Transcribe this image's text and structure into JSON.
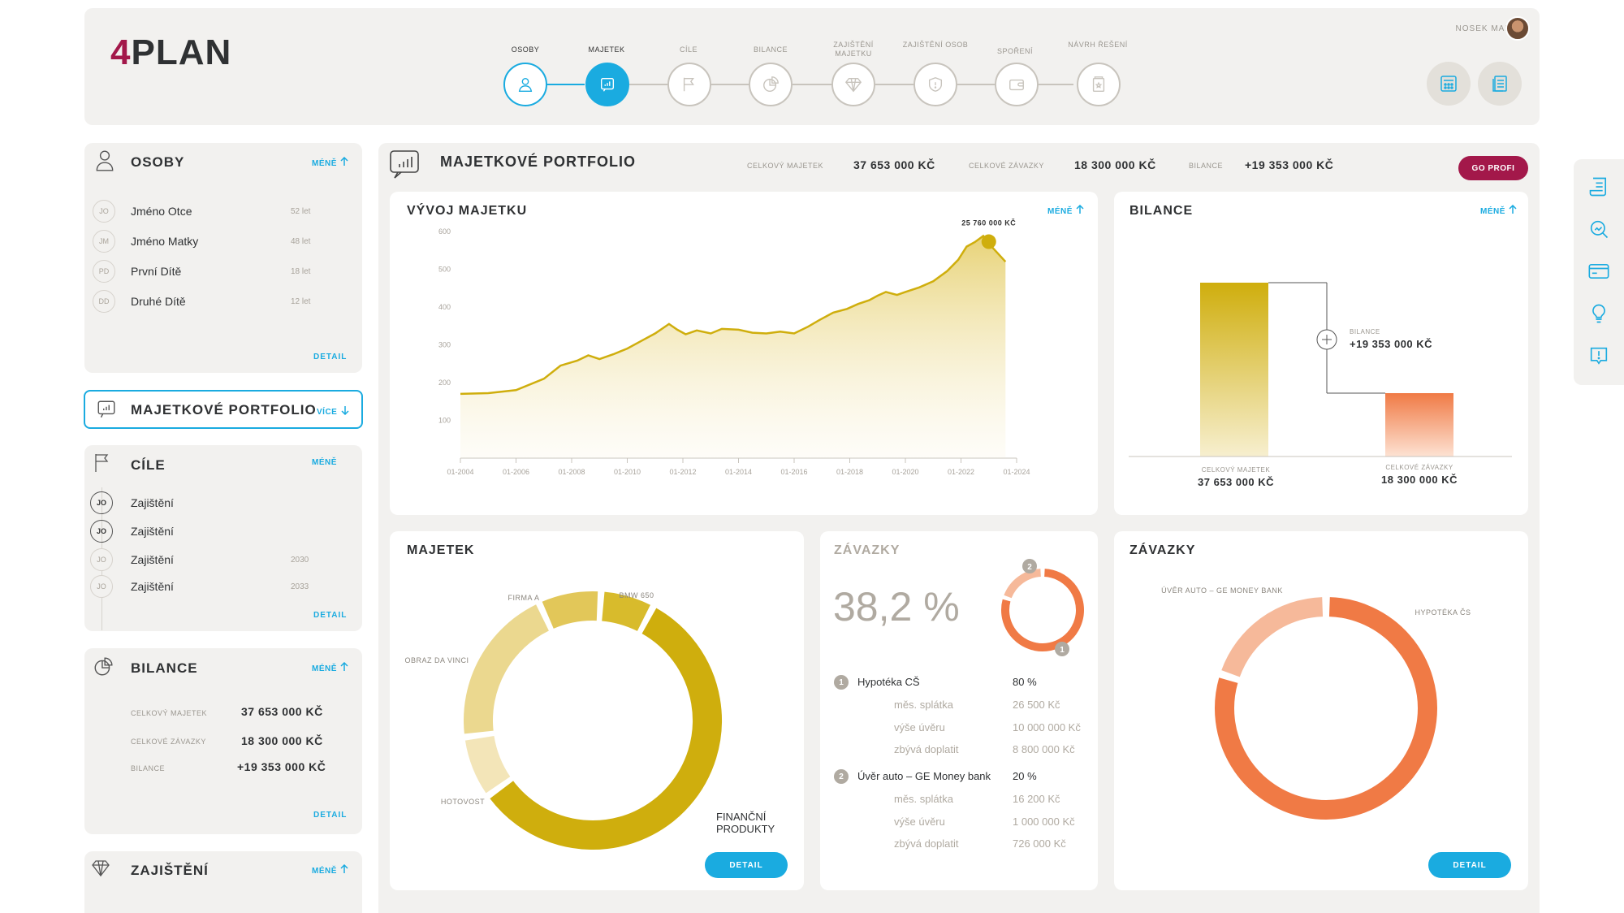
{
  "brand": {
    "prefix": "4",
    "name": "PLAN",
    "accent": "#a3184a"
  },
  "user": {
    "name": "NOSEK MARCEL"
  },
  "colors": {
    "blue": "#1aabe0",
    "gold": "#cfae0d",
    "orange": "#f07a45",
    "panel": "#f2f1ef"
  },
  "steps": [
    {
      "label": "OSOBY",
      "icon": "person-icon"
    },
    {
      "label": "MAJETEK",
      "icon": "portfolio-icon"
    },
    {
      "label": "CÍLE",
      "icon": "flag-icon"
    },
    {
      "label": "BILANCE",
      "icon": "pie-icon"
    },
    {
      "label": "ZAJIŠTĚNÍ MAJETKU",
      "icon": "diamond-icon"
    },
    {
      "label": "ZAJIŠTĚNÍ OSOB",
      "icon": "shield-icon"
    },
    {
      "label": "SPOŘENÍ",
      "icon": "wallet-icon"
    },
    {
      "label": "NÁVRH ŘEŠENÍ",
      "icon": "document-icon"
    }
  ],
  "osoby": {
    "title": "OSOBY",
    "more": "MÉNĚ",
    "detail": "DETAIL",
    "people": [
      {
        "initials": "JO",
        "name": "Jméno Otce",
        "age": "52 let"
      },
      {
        "initials": "JM",
        "name": "Jméno Matky",
        "age": "48 let"
      },
      {
        "initials": "PD",
        "name": "První Dítě",
        "age": "18 let"
      },
      {
        "initials": "DD",
        "name": "Druhé Dítě",
        "age": "12 let"
      }
    ]
  },
  "portfolio_nav": {
    "title": "MAJETKOVÉ PORTFOLIO",
    "more": "VÍCE"
  },
  "cile": {
    "title": "CÍLE",
    "more": "MÉNĚ",
    "detail": "DETAIL",
    "items": [
      {
        "initials": "JO",
        "name": "Zajištění",
        "year": ""
      },
      {
        "initials": "JO",
        "name": "Zajištění",
        "year": ""
      },
      {
        "initials": "JO",
        "name": "Zajištění",
        "year": "2030"
      },
      {
        "initials": "JO",
        "name": "Zajištění",
        "year": "2033"
      }
    ]
  },
  "bilance_side": {
    "title": "BILANCE",
    "more": "MÉNĚ",
    "detail": "DETAIL",
    "rows": [
      {
        "label": "CELKOVÝ MAJETEK",
        "value": "37 653 000 KČ"
      },
      {
        "label": "CELKOVÉ ZÁVAZKY",
        "value": "18 300 000 KČ"
      },
      {
        "label": "BILANCE",
        "value": "+19 353 000 KČ"
      }
    ]
  },
  "zajisteni_side": {
    "title": "ZAJIŠTĚNÍ",
    "more": "MÉNĚ"
  },
  "main": {
    "title": "MAJETKOVÉ PORTFOLIO",
    "total_assets_label": "CELKOVÝ MAJETEK",
    "total_assets": "37 653 000 KČ",
    "total_liab_label": "CELKOVÉ ZÁVAZKY",
    "total_liab": "18 300 000 KČ",
    "balance_label": "BILANCE",
    "balance": "+19 353 000 KČ",
    "go_profi": "GO PROFI"
  },
  "vyvoj": {
    "title": "VÝVOJ MAJETKU",
    "more": "MÉNĚ"
  },
  "bilance_card": {
    "title": "BILANCE",
    "more": "MÉNĚ",
    "balance_label": "BILANCE",
    "balance_value": "+19 353 000 KČ",
    "assets_label": "CELKOVÝ MAJETEK",
    "assets_value": "37 653 000 KČ",
    "liab_label": "CELKOVÉ ZÁVAZKY",
    "liab_value": "18 300 000 KČ"
  },
  "majetek_card": {
    "title": "MAJETEK",
    "detail": "DETAIL"
  },
  "zavazky_pct": {
    "title": "ZÁVAZKY",
    "percent": "38,2 %",
    "loans": [
      {
        "num": "1",
        "name": "Hypotéka CŠ",
        "pct": "80 %",
        "rows": [
          {
            "label": "měs. splátka",
            "value": "26 500 Kč"
          },
          {
            "label": "výše úvěru",
            "value": "10 000 000 Kč"
          },
          {
            "label": "zbývá doplatit",
            "value": "8 800 000 Kč"
          }
        ]
      },
      {
        "num": "2",
        "name": "Úvěr auto – GE Money bank",
        "pct": "20 %",
        "rows": [
          {
            "label": "měs. splátka",
            "value": "16 200 Kč"
          },
          {
            "label": "výše úvěru",
            "value": "1 000 000 Kč"
          },
          {
            "label": "zbývá doplatit",
            "value": "726 000 Kč"
          }
        ]
      }
    ]
  },
  "zavazky_card": {
    "title": "ZÁVAZKY",
    "detail": "DETAIL"
  },
  "chart_data": [
    {
      "type": "area",
      "title": "VÝVOJ MAJETKU",
      "x": [
        "01-2004",
        "01-2006",
        "01-2008",
        "01-2010",
        "01-2012",
        "01-2014",
        "01-2016",
        "01-2018",
        "01-2020",
        "01-2022",
        "01-2024"
      ],
      "y_ticks": [
        100,
        200,
        300,
        400,
        500,
        600
      ],
      "ylim": [
        0,
        630
      ],
      "xrange": [
        2004,
        2024
      ],
      "points": [
        [
          2004,
          170
        ],
        [
          2005,
          172
        ],
        [
          2006,
          180
        ],
        [
          2007,
          210
        ],
        [
          2007.6,
          245
        ],
        [
          2008.2,
          258
        ],
        [
          2008.6,
          272
        ],
        [
          2009,
          262
        ],
        [
          2009.5,
          275
        ],
        [
          2010,
          290
        ],
        [
          2010.5,
          310
        ],
        [
          2011,
          330
        ],
        [
          2011.5,
          355
        ],
        [
          2011.8,
          340
        ],
        [
          2012.1,
          328
        ],
        [
          2012.5,
          338
        ],
        [
          2013,
          330
        ],
        [
          2013.4,
          342
        ],
        [
          2014,
          340
        ],
        [
          2014.5,
          332
        ],
        [
          2015,
          330
        ],
        [
          2015.5,
          335
        ],
        [
          2016,
          330
        ],
        [
          2016.5,
          348
        ],
        [
          2016.9,
          365
        ],
        [
          2017.4,
          385
        ],
        [
          2017.9,
          395
        ],
        [
          2018.3,
          408
        ],
        [
          2018.7,
          418
        ],
        [
          2019,
          430
        ],
        [
          2019.3,
          440
        ],
        [
          2019.7,
          432
        ],
        [
          2020,
          440
        ],
        [
          2020.5,
          452
        ],
        [
          2021,
          468
        ],
        [
          2021.5,
          495
        ],
        [
          2021.9,
          525
        ],
        [
          2022.2,
          560
        ],
        [
          2022.5,
          572
        ],
        [
          2022.8,
          588
        ],
        [
          2023.1,
          560
        ],
        [
          2023.6,
          520
        ]
      ],
      "highlight": {
        "x": 2023.0,
        "y": 573,
        "label": "25 760 000 KČ"
      }
    },
    {
      "type": "bar",
      "title": "BILANCE",
      "categories": [
        "CELKOVÝ MAJETEK",
        "CELKOVÉ ZÁVAZKY"
      ],
      "values": [
        37653000,
        18300000
      ],
      "balance": 19353000
    },
    {
      "type": "pie",
      "title": "MAJETEK",
      "series": [
        {
          "name": "FINANČNÍ PRODUKTY",
          "value": 51,
          "color": "#cfae0d"
        },
        {
          "name": "HOTOVOST",
          "value": 7,
          "color": "#f3e5b8"
        },
        {
          "name": "OBRAZ DA VINCI",
          "value": 18,
          "color": "#ebd88f"
        },
        {
          "name": "FIRMA A",
          "value": 7,
          "color": "#e2c759"
        },
        {
          "name": "BMW 650",
          "value": 6,
          "color": "#d8bb2c"
        }
      ]
    },
    {
      "type": "pie",
      "title": "ZÁVAZKY",
      "series": [
        {
          "name": "HYPOTÉKA ČS",
          "value": 80,
          "color": "#f07a45"
        },
        {
          "name": "ÚVĚR AUTO – GE MONEY BANK",
          "value": 20,
          "color": "#f6b99a"
        }
      ]
    }
  ]
}
